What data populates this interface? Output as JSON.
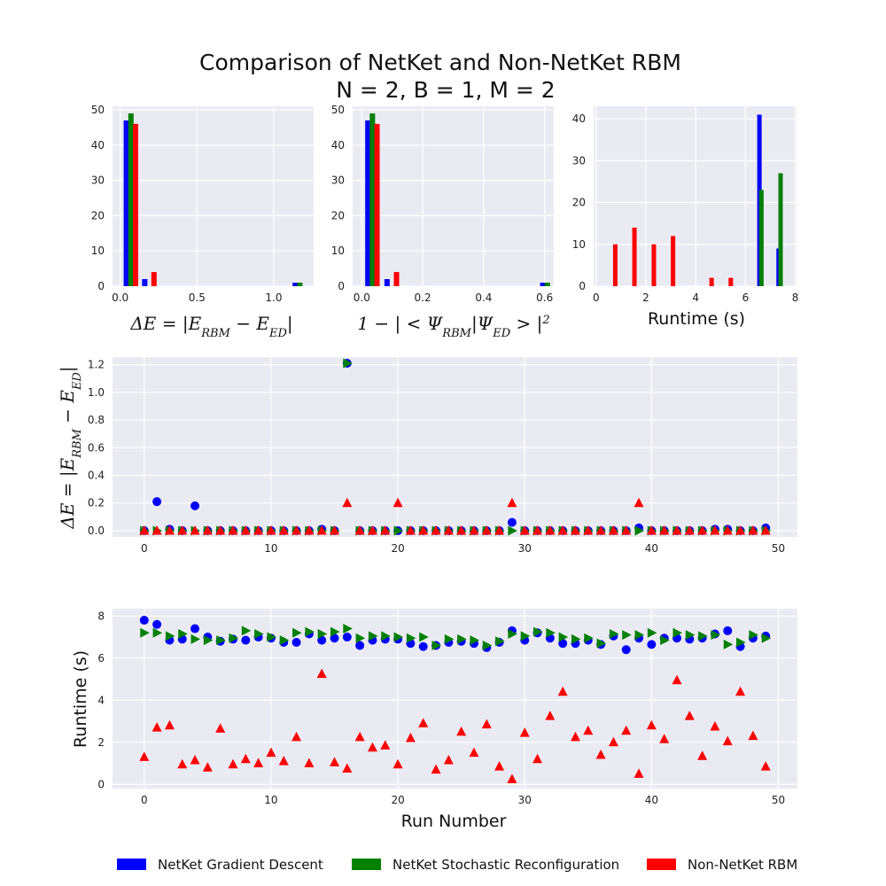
{
  "title_line1": "Comparison of NetKet and Non-NetKet RBM",
  "title_line2": "N = 2, B = 1, M = 2",
  "colors": {
    "gd": "#0000ff",
    "sr": "#008000",
    "nn": "#ff0000",
    "axes_bg": "#eaeaf2",
    "grid": "#ffffff"
  },
  "legend": [
    {
      "label": "NetKet Gradient Descent",
      "color": "#0000ff"
    },
    {
      "label": "NetKet Stochastic Reconfiguration",
      "color": "#008000"
    },
    {
      "label": "Non-NetKet RBM",
      "color": "#ff0000"
    }
  ],
  "chart_data": [
    {
      "type": "bar",
      "xlabel": "ΔE = |E_RBM − E_ED|",
      "xlim": [
        -0.05,
        1.26
      ],
      "ylim": [
        0,
        51
      ],
      "xticks": [
        "0.0",
        "0.5",
        "1.0"
      ],
      "yticks": [
        "0",
        "10",
        "20",
        "30",
        "40",
        "50"
      ],
      "series": [
        {
          "name": "NetKet Gradient Descent",
          "x": [
            0.04,
            0.16,
            1.14
          ],
          "values": [
            47,
            2,
            1
          ]
        },
        {
          "name": "NetKet Stochastic Reconfiguration",
          "x": [
            0.07,
            1.17
          ],
          "values": [
            49,
            1
          ]
        },
        {
          "name": "Non-NetKet RBM",
          "x": [
            0.1,
            0.22
          ],
          "values": [
            46,
            4
          ]
        }
      ]
    },
    {
      "type": "bar",
      "xlabel": "1 − |<Ψ_RBM|Ψ_ED>|²",
      "xlim": [
        -0.03,
        0.63
      ],
      "ylim": [
        0,
        51
      ],
      "xticks": [
        "0.0",
        "0.2",
        "0.4",
        "0.6"
      ],
      "yticks": [
        "0",
        "10",
        "20",
        "30",
        "40",
        "50"
      ],
      "series": [
        {
          "name": "NetKet Gradient Descent",
          "x": [
            0.02,
            0.083,
            0.594
          ],
          "values": [
            47,
            2,
            1
          ]
        },
        {
          "name": "NetKet Stochastic Reconfiguration",
          "x": [
            0.035,
            0.609
          ],
          "values": [
            49,
            1
          ]
        },
        {
          "name": "Non-NetKet RBM",
          "x": [
            0.05,
            0.114
          ],
          "values": [
            46,
            4
          ]
        }
      ]
    },
    {
      "type": "bar",
      "xlabel": "Runtime (s)",
      "xlim": [
        -0.1,
        8.05
      ],
      "ylim": [
        0,
        43
      ],
      "xticks": [
        "0",
        "2",
        "4",
        "6",
        "8"
      ],
      "yticks": [
        "0",
        "10",
        "20",
        "30",
        "40"
      ],
      "series": [
        {
          "name": "NetKet Gradient Descent",
          "x": [
            6.56,
            7.33
          ],
          "values": [
            41,
            9
          ]
        },
        {
          "name": "NetKet Stochastic Reconfiguration",
          "x": [
            6.64,
            7.41
          ],
          "values": [
            23,
            27
          ]
        },
        {
          "name": "Non-NetKet RBM",
          "x": [
            0.77,
            1.54,
            2.32,
            3.09,
            4.64,
            5.41
          ],
          "values": [
            10,
            14,
            10,
            12,
            2,
            2
          ]
        }
      ]
    },
    {
      "type": "scatter",
      "xlabel": "",
      "ylabel": "ΔE = |E_RBM − E_ED|",
      "xlim": [
        -2.5,
        51.5
      ],
      "ylim": [
        -0.045,
        1.255
      ],
      "xticks": [
        "0",
        "10",
        "20",
        "30",
        "40",
        "50"
      ],
      "yticks": [
        "0.0",
        "0.2",
        "0.4",
        "0.6",
        "0.8",
        "1.0",
        "1.2"
      ],
      "x": [
        0,
        1,
        2,
        3,
        4,
        5,
        6,
        7,
        8,
        9,
        10,
        11,
        12,
        13,
        14,
        15,
        16,
        17,
        18,
        19,
        20,
        21,
        22,
        23,
        24,
        25,
        26,
        27,
        28,
        29,
        30,
        31,
        32,
        33,
        34,
        35,
        36,
        37,
        38,
        39,
        40,
        41,
        42,
        43,
        44,
        45,
        46,
        47,
        48,
        49
      ],
      "series": [
        {
          "name": "NetKet Gradient Descent",
          "marker": "circle",
          "values": [
            0.0,
            0.21,
            0.01,
            0.0,
            0.18,
            0.0,
            0.0,
            0.0,
            0.0,
            0.0,
            0.0,
            0.0,
            0.0,
            0.0,
            0.01,
            0.0,
            1.21,
            0.0,
            0.0,
            0.0,
            0.0,
            0.0,
            0.0,
            0.0,
            0.0,
            0.0,
            0.0,
            0.0,
            0.0,
            0.06,
            0.0,
            0.0,
            0.0,
            0.0,
            0.0,
            0.0,
            0.0,
            0.0,
            0.0,
            0.02,
            0.0,
            0.0,
            0.0,
            0.0,
            0.0,
            0.01,
            0.01,
            0.0,
            0.0,
            0.02
          ]
        },
        {
          "name": "NetKet Stochastic Reconfiguration",
          "marker": "triangle-right",
          "values": [
            0.0,
            0.0,
            0.0,
            0.0,
            0.0,
            0.0,
            0.0,
            0.0,
            0.0,
            0.0,
            0.0,
            0.0,
            0.0,
            0.0,
            0.0,
            0.0,
            1.21,
            0.0,
            0.0,
            0.0,
            0.0,
            0.0,
            0.0,
            0.0,
            0.0,
            0.0,
            0.0,
            0.0,
            0.0,
            0.0,
            0.0,
            0.0,
            0.0,
            0.0,
            0.0,
            0.0,
            0.0,
            0.0,
            0.0,
            0.0,
            0.0,
            0.0,
            0.0,
            0.0,
            0.0,
            0.0,
            0.0,
            0.0,
            0.0,
            0.0
          ]
        },
        {
          "name": "Non-NetKet RBM",
          "marker": "triangle-up",
          "values": [
            0.0,
            0.0,
            0.0,
            0.0,
            0.0,
            0.0,
            0.0,
            0.0,
            0.0,
            0.0,
            0.0,
            0.0,
            0.0,
            0.0,
            0.0,
            0.0,
            0.2,
            0.0,
            0.0,
            0.0,
            0.2,
            0.0,
            0.0,
            0.0,
            0.0,
            0.0,
            0.0,
            0.0,
            0.0,
            0.2,
            0.0,
            0.0,
            0.0,
            0.0,
            0.0,
            0.0,
            0.0,
            0.0,
            0.0,
            0.2,
            0.0,
            0.0,
            0.0,
            0.0,
            0.0,
            0.0,
            0.0,
            0.0,
            0.0,
            0.0
          ]
        }
      ]
    },
    {
      "type": "scatter",
      "xlabel": "Run Number",
      "ylabel": "Runtime (s)",
      "xlim": [
        -2.5,
        51.5
      ],
      "ylim": [
        -0.2,
        8.35
      ],
      "xticks": [
        "0",
        "10",
        "20",
        "30",
        "40",
        "50"
      ],
      "yticks": [
        "0",
        "2",
        "4",
        "6",
        "8"
      ],
      "x": [
        0,
        1,
        2,
        3,
        4,
        5,
        6,
        7,
        8,
        9,
        10,
        11,
        12,
        13,
        14,
        15,
        16,
        17,
        18,
        19,
        20,
        21,
        22,
        23,
        24,
        25,
        26,
        27,
        28,
        29,
        30,
        31,
        32,
        33,
        34,
        35,
        36,
        37,
        38,
        39,
        40,
        41,
        42,
        43,
        44,
        45,
        46,
        47,
        48,
        49
      ],
      "series": [
        {
          "name": "NetKet Gradient Descent",
          "marker": "circle",
          "values": [
            7.8,
            7.6,
            6.85,
            6.9,
            7.4,
            7.0,
            6.8,
            6.9,
            6.85,
            7.0,
            6.95,
            6.75,
            6.75,
            7.15,
            6.85,
            6.95,
            7.0,
            6.6,
            6.85,
            6.9,
            6.9,
            6.7,
            6.55,
            6.6,
            6.75,
            6.8,
            6.7,
            6.5,
            6.75,
            7.3,
            6.85,
            7.2,
            6.95,
            6.7,
            6.7,
            6.85,
            6.65,
            7.05,
            6.4,
            6.95,
            6.65,
            6.95,
            6.95,
            6.9,
            6.95,
            7.15,
            7.3,
            6.55,
            6.95,
            7.05
          ]
        },
        {
          "name": "NetKet Stochastic Reconfiguration",
          "marker": "triangle-right",
          "values": [
            7.2,
            7.2,
            7.05,
            7.15,
            6.9,
            6.85,
            6.85,
            6.95,
            7.3,
            7.15,
            7.0,
            6.85,
            7.2,
            7.25,
            7.15,
            7.25,
            7.4,
            6.95,
            7.05,
            7.05,
            7.0,
            6.95,
            7.0,
            6.6,
            6.9,
            6.9,
            6.85,
            6.6,
            6.8,
            7.15,
            7.05,
            7.25,
            7.2,
            7.0,
            6.9,
            6.95,
            6.7,
            7.15,
            7.1,
            7.1,
            7.2,
            6.85,
            7.2,
            7.1,
            7.05,
            7.1,
            6.65,
            6.75,
            7.1,
            6.95
          ]
        },
        {
          "name": "Non-NetKet RBM",
          "marker": "triangle-up",
          "values": [
            1.3,
            2.7,
            2.8,
            0.95,
            1.15,
            0.8,
            2.65,
            0.95,
            1.2,
            1.0,
            1.5,
            1.1,
            2.25,
            1.0,
            5.25,
            1.05,
            0.75,
            2.25,
            1.75,
            1.85,
            0.95,
            2.2,
            2.9,
            0.7,
            1.15,
            2.5,
            1.5,
            2.85,
            0.85,
            0.25,
            2.45,
            1.2,
            3.25,
            4.4,
            2.25,
            2.55,
            1.4,
            2.0,
            2.55,
            0.5,
            2.8,
            2.15,
            4.95,
            3.25,
            1.35,
            2.75,
            2.05,
            4.4,
            2.3,
            0.85
          ]
        }
      ]
    }
  ]
}
